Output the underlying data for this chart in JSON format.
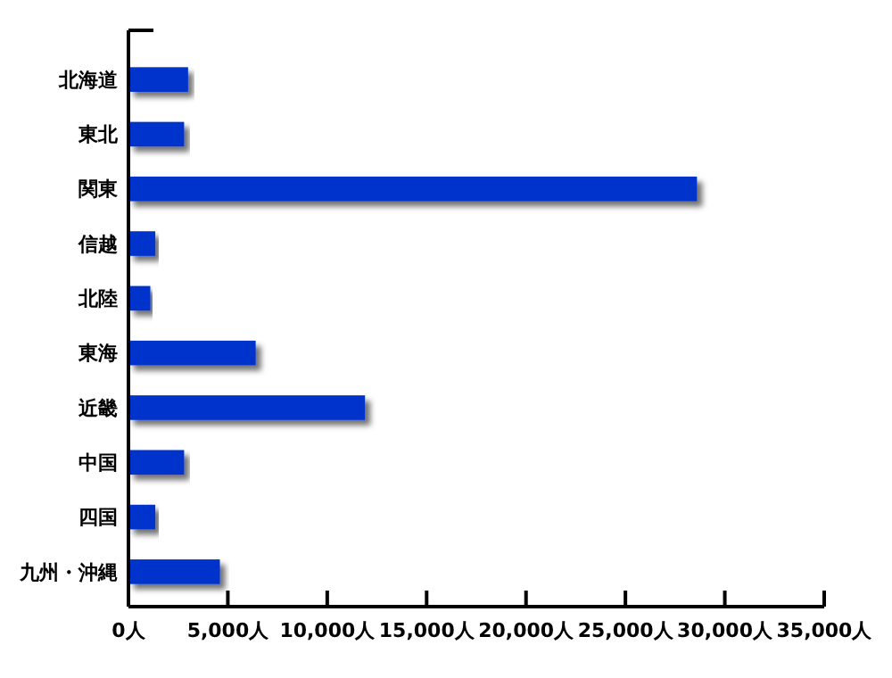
{
  "chart_data": {
    "type": "bar",
    "orientation": "horizontal",
    "categories": [
      "北海道",
      "東北",
      "関東",
      "信越",
      "北陸",
      "東海",
      "近畿",
      "中国",
      "四国",
      "九州・沖縄"
    ],
    "values": [
      3000,
      2800,
      28600,
      1350,
      1100,
      6400,
      11900,
      2800,
      1350,
      4600
    ],
    "color": "#0033cc",
    "xlim": [
      0,
      35000
    ],
    "xticks": [
      {
        "value": 0,
        "label": "0人"
      },
      {
        "value": 5000,
        "label": "5,000人"
      },
      {
        "value": 10000,
        "label": "10,000人"
      },
      {
        "value": 15000,
        "label": "15,000人"
      },
      {
        "value": 20000,
        "label": "20,000人"
      },
      {
        "value": 25000,
        "label": "25,000人"
      },
      {
        "value": 30000,
        "label": "30,000人"
      },
      {
        "value": 35000,
        "label": "35,000人"
      }
    ],
    "grid": false
  }
}
